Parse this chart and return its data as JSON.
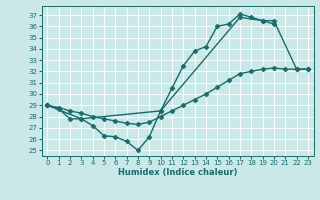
{
  "xlabel": "Humidex (Indice chaleur)",
  "bg_color": "#cbe8e8",
  "line_color": "#1a6b6b",
  "grid_color": "#ffffff",
  "xlim": [
    -0.5,
    23.5
  ],
  "ylim": [
    24.5,
    37.8
  ],
  "yticks": [
    25,
    26,
    27,
    28,
    29,
    30,
    31,
    32,
    33,
    34,
    35,
    36,
    37
  ],
  "xticks": [
    0,
    1,
    2,
    3,
    4,
    5,
    6,
    7,
    8,
    9,
    10,
    11,
    12,
    13,
    14,
    15,
    16,
    17,
    18,
    19,
    20,
    21,
    22,
    23
  ],
  "line1_x": [
    0,
    1,
    2,
    3,
    4,
    5,
    6,
    7,
    8,
    9,
    10,
    11,
    12,
    13,
    14,
    15,
    16,
    17,
    18,
    19,
    20
  ],
  "line1_y": [
    29.0,
    28.7,
    27.8,
    27.8,
    27.2,
    26.3,
    26.2,
    25.8,
    25.0,
    26.2,
    28.5,
    30.5,
    32.5,
    33.8,
    34.2,
    36.0,
    36.2,
    37.1,
    36.8,
    36.5,
    36.2
  ],
  "line2_x": [
    0,
    3,
    10,
    17,
    19,
    20,
    22,
    23
  ],
  "line2_y": [
    29.0,
    27.8,
    28.5,
    36.8,
    36.5,
    36.5,
    32.2,
    32.2
  ],
  "line3_x": [
    0,
    1,
    2,
    3,
    4,
    5,
    6,
    7,
    8,
    9,
    10,
    11,
    12,
    13,
    14,
    15,
    16,
    17,
    18,
    19,
    20,
    21,
    22,
    23
  ],
  "line3_y": [
    29.0,
    28.8,
    28.5,
    28.3,
    28.0,
    27.8,
    27.6,
    27.4,
    27.3,
    27.5,
    28.0,
    28.5,
    29.0,
    29.5,
    30.0,
    30.6,
    31.2,
    31.8,
    32.0,
    32.2,
    32.3,
    32.2,
    32.2,
    32.2
  ],
  "marker": "D",
  "markersize": 2.5,
  "linewidth": 1.0
}
